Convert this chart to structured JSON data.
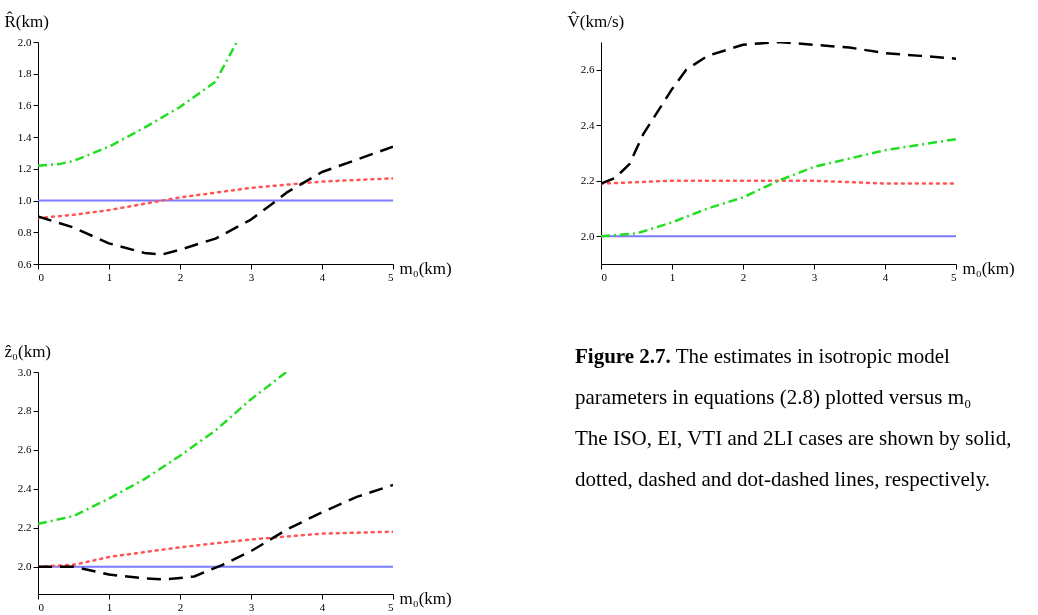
{
  "chart_data": [
    {
      "type": "line",
      "ylabel": "R̂(km)",
      "xlabel": "m₀(km)",
      "xlim": [
        0,
        5
      ],
      "xticks": [
        0,
        1,
        2,
        3,
        4,
        5
      ],
      "ylim": [
        0.6,
        2.0
      ],
      "yticks": [
        0.6,
        0.8,
        {
          "value": 1,
          "label": "1.0"
        },
        1.2,
        1.4,
        1.6,
        1.8,
        {
          "value": 2,
          "label": "2.0"
        }
      ],
      "series": [
        {
          "color": "#7a7aff",
          "line_style": "solid",
          "x": [
            0,
            5
          ],
          "values": [
            1.0,
            1.0
          ]
        },
        {
          "color": "#ff5555",
          "line_style": "dotted",
          "x": [
            0,
            0.5,
            1,
            1.5,
            1.75,
            2,
            2.5,
            3,
            3.5,
            4,
            4.5,
            5
          ],
          "values": [
            0.89,
            0.91,
            0.94,
            0.98,
            1.0,
            1.02,
            1.05,
            1.08,
            1.1,
            1.12,
            1.13,
            1.14
          ]
        },
        {
          "color": "#000000",
          "line_style": "dashed",
          "x": [
            0,
            0.5,
            1,
            1.5,
            1.75,
            2,
            2.5,
            3,
            3.3,
            3.5,
            4,
            4.5,
            5
          ],
          "values": [
            0.9,
            0.83,
            0.73,
            0.67,
            0.66,
            0.69,
            0.76,
            0.88,
            0.98,
            1.05,
            1.18,
            1.26,
            1.34
          ]
        },
        {
          "color": "#22dd22",
          "line_style": "dashdot",
          "x": [
            0,
            0.3,
            0.5,
            1,
            1.5,
            2,
            2.5,
            2.8
          ],
          "values": [
            1.22,
            1.23,
            1.25,
            1.34,
            1.46,
            1.59,
            1.75,
            2.0
          ]
        }
      ]
    },
    {
      "type": "line",
      "ylabel": "V̂(km/s)",
      "xlabel": "m₀(km)",
      "xlim": [
        0,
        5
      ],
      "xticks": [
        0,
        1,
        2,
        3,
        4,
        5
      ],
      "ylim": [
        1.9,
        2.7
      ],
      "yticks": [
        {
          "value": 2,
          "label": "2.0"
        },
        2.2,
        2.4,
        2.6
      ],
      "series": [
        {
          "color": "#7a7aff",
          "line_style": "solid",
          "x": [
            0,
            5
          ],
          "values": [
            2.0,
            2.0
          ]
        },
        {
          "color": "#ff5555",
          "line_style": "dotted",
          "x": [
            0,
            1,
            2,
            3,
            4,
            5
          ],
          "values": [
            2.19,
            2.2,
            2.2,
            2.2,
            2.19,
            2.19
          ]
        },
        {
          "color": "#000000",
          "line_style": "dashed",
          "x": [
            0,
            0.2,
            0.4,
            0.6,
            0.8,
            1,
            1.2,
            1.5,
            2,
            2.5,
            3,
            3.5,
            4,
            4.5,
            5
          ],
          "values": [
            2.19,
            2.21,
            2.26,
            2.37,
            2.45,
            2.53,
            2.6,
            2.65,
            2.69,
            2.7,
            2.69,
            2.68,
            2.66,
            2.65,
            2.64
          ]
        },
        {
          "color": "#22dd22",
          "line_style": "dashdot",
          "x": [
            0,
            0.5,
            1,
            1.5,
            2,
            2.5,
            3,
            3.5,
            4,
            4.5,
            5
          ],
          "values": [
            2.0,
            2.01,
            2.05,
            2.1,
            2.14,
            2.2,
            2.25,
            2.28,
            2.31,
            2.33,
            2.35
          ]
        }
      ]
    },
    {
      "type": "line",
      "ylabel": "ẑ₀(km)",
      "xlabel": "m₀(km)",
      "xlim": [
        0,
        5
      ],
      "xticks": [
        0,
        1,
        2,
        3,
        4,
        5
      ],
      "ylim": [
        1.86,
        3.0
      ],
      "yticks": [
        {
          "value": 2,
          "label": "2.0"
        },
        2.2,
        2.4,
        2.6,
        2.8,
        {
          "value": 3,
          "label": "3.0"
        }
      ],
      "series": [
        {
          "color": "#7a7aff",
          "line_style": "solid",
          "x": [
            0,
            5
          ],
          "values": [
            2.0,
            2.0
          ]
        },
        {
          "color": "#ff5555",
          "line_style": "dotted",
          "x": [
            0,
            0.5,
            1,
            2,
            3,
            4,
            5
          ],
          "values": [
            2.0,
            2.01,
            2.05,
            2.1,
            2.14,
            2.17,
            2.18
          ]
        },
        {
          "color": "#000000",
          "line_style": "dashed",
          "x": [
            0,
            0.5,
            1,
            1.5,
            1.8,
            2.2,
            2.6,
            3,
            3.5,
            4,
            4.5,
            5
          ],
          "values": [
            2.0,
            2.0,
            1.96,
            1.94,
            1.935,
            1.95,
            2.01,
            2.08,
            2.19,
            2.28,
            2.36,
            2.42
          ]
        },
        {
          "color": "#22dd22",
          "line_style": "dashdot",
          "x": [
            0,
            0.5,
            1,
            1.5,
            2,
            2.5,
            3,
            3.5
          ],
          "values": [
            2.22,
            2.26,
            2.35,
            2.45,
            2.57,
            2.7,
            2.86,
            3.0
          ]
        }
      ]
    },
    {
      "type": "other",
      "title": "Figure 2.7.",
      "annotations": [
        "The estimates in isotropic model parameters in equations (2.8) plotted versus m₀",
        "The ISO, EI, VTI and 2LI cases are shown by solid, dotted, dashed and dot-dashed lines, respectively."
      ]
    }
  ]
}
